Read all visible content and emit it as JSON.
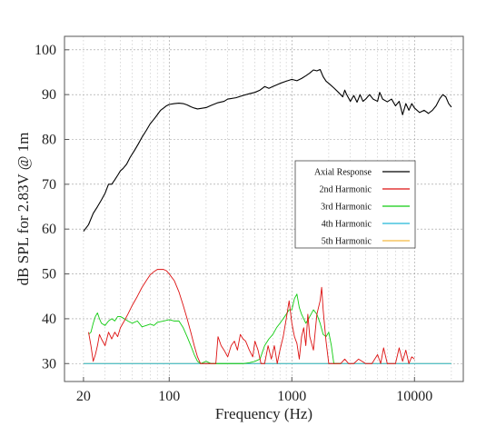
{
  "chart_data": {
    "type": "line",
    "title": "",
    "xlabel": "Frequency (Hz)",
    "ylabel": "dB SPL for 2.83V @ 1m",
    "xscale": "log",
    "xlim": [
      14,
      25000
    ],
    "ylim": [
      26,
      103
    ],
    "x_ticks": [
      20,
      100,
      1000,
      10000
    ],
    "x_tick_labels": [
      "20",
      "100",
      "1000",
      "10000"
    ],
    "y_ticks": [
      30,
      40,
      50,
      60,
      70,
      80,
      90,
      100
    ],
    "y_tick_labels": [
      "30",
      "40",
      "50",
      "60",
      "70",
      "80",
      "90",
      "100"
    ],
    "grid": true,
    "legend_position": "center-right",
    "series": [
      {
        "name": "Axial Response",
        "color": "#000000",
        "points": [
          [
            20,
            59.5
          ],
          [
            22,
            61
          ],
          [
            24,
            63.5
          ],
          [
            26,
            65
          ],
          [
            28,
            66.5
          ],
          [
            30,
            68
          ],
          [
            32,
            70
          ],
          [
            34,
            70
          ],
          [
            36,
            71
          ],
          [
            38,
            72
          ],
          [
            40,
            73
          ],
          [
            42,
            73.5
          ],
          [
            45,
            74.5
          ],
          [
            48,
            76
          ],
          [
            52,
            77.5
          ],
          [
            56,
            79
          ],
          [
            60,
            80.5
          ],
          [
            65,
            82
          ],
          [
            70,
            83.5
          ],
          [
            75,
            84.5
          ],
          [
            80,
            85.5
          ],
          [
            85,
            86.5
          ],
          [
            90,
            87
          ],
          [
            95,
            87.5
          ],
          [
            100,
            87.8
          ],
          [
            110,
            88
          ],
          [
            120,
            88.1
          ],
          [
            130,
            88
          ],
          [
            140,
            87.7
          ],
          [
            150,
            87.3
          ],
          [
            160,
            87
          ],
          [
            170,
            86.8
          ],
          [
            180,
            86.9
          ],
          [
            200,
            87.1
          ],
          [
            220,
            87.6
          ],
          [
            250,
            88.2
          ],
          [
            280,
            88.5
          ],
          [
            300,
            89
          ],
          [
            350,
            89.3
          ],
          [
            400,
            89.8
          ],
          [
            450,
            90.2
          ],
          [
            500,
            90.5
          ],
          [
            550,
            91
          ],
          [
            600,
            91.8
          ],
          [
            650,
            91.4
          ],
          [
            700,
            91.8
          ],
          [
            800,
            92.5
          ],
          [
            900,
            93
          ],
          [
            1000,
            93.4
          ],
          [
            1100,
            93.1
          ],
          [
            1200,
            93.6
          ],
          [
            1300,
            94.2
          ],
          [
            1400,
            94.8
          ],
          [
            1500,
            95.5
          ],
          [
            1600,
            95.3
          ],
          [
            1700,
            95.6
          ],
          [
            1800,
            94
          ],
          [
            1900,
            93
          ],
          [
            2000,
            92.5
          ],
          [
            2200,
            91.5
          ],
          [
            2400,
            90.5
          ],
          [
            2600,
            89.5
          ],
          [
            2700,
            91
          ],
          [
            2800,
            90
          ],
          [
            3000,
            88.5
          ],
          [
            3200,
            89.8
          ],
          [
            3400,
            88.3
          ],
          [
            3600,
            90
          ],
          [
            3800,
            88.5
          ],
          [
            4000,
            89
          ],
          [
            4300,
            90
          ],
          [
            4600,
            89
          ],
          [
            5000,
            88.5
          ],
          [
            5200,
            90.5
          ],
          [
            5500,
            89
          ],
          [
            6000,
            88.4
          ],
          [
            6500,
            89
          ],
          [
            7000,
            87.5
          ],
          [
            7500,
            88.5
          ],
          [
            8000,
            85.5
          ],
          [
            8500,
            88
          ],
          [
            9000,
            86.5
          ],
          [
            9500,
            88
          ],
          [
            10000,
            87
          ],
          [
            11000,
            86
          ],
          [
            12000,
            86.5
          ],
          [
            13000,
            85.8
          ],
          [
            14000,
            86.5
          ],
          [
            15000,
            87.5
          ],
          [
            16000,
            89
          ],
          [
            17000,
            90
          ],
          [
            18000,
            89.5
          ],
          [
            19000,
            88
          ],
          [
            20000,
            87.2
          ]
        ]
      },
      {
        "name": "2nd Harmonic",
        "color": "#dd1111",
        "points": [
          [
            22,
            37
          ],
          [
            23,
            34
          ],
          [
            24,
            30.5
          ],
          [
            25,
            32
          ],
          [
            26,
            34
          ],
          [
            27,
            36.5
          ],
          [
            28,
            35.5
          ],
          [
            30,
            34
          ],
          [
            32,
            37
          ],
          [
            34,
            35.5
          ],
          [
            36,
            37
          ],
          [
            38,
            36
          ],
          [
            40,
            38
          ],
          [
            43,
            39.5
          ],
          [
            46,
            41
          ],
          [
            50,
            43
          ],
          [
            55,
            45
          ],
          [
            60,
            47
          ],
          [
            65,
            48.5
          ],
          [
            70,
            49.8
          ],
          [
            75,
            50.5
          ],
          [
            80,
            51
          ],
          [
            85,
            51
          ],
          [
            90,
            51
          ],
          [
            95,
            50.7
          ],
          [
            100,
            50
          ],
          [
            110,
            48.5
          ],
          [
            120,
            46
          ],
          [
            130,
            43
          ],
          [
            140,
            40
          ],
          [
            150,
            37
          ],
          [
            160,
            34
          ],
          [
            170,
            31.5
          ],
          [
            180,
            30
          ],
          [
            210,
            30
          ],
          [
            240,
            30
          ],
          [
            250,
            36
          ],
          [
            265,
            34
          ],
          [
            280,
            33
          ],
          [
            300,
            31.5
          ],
          [
            320,
            34
          ],
          [
            340,
            35
          ],
          [
            360,
            33
          ],
          [
            380,
            36.5
          ],
          [
            400,
            35.5
          ],
          [
            420,
            35
          ],
          [
            450,
            33
          ],
          [
            480,
            31.5
          ],
          [
            500,
            35
          ],
          [
            530,
            33
          ],
          [
            560,
            30
          ],
          [
            600,
            30
          ],
          [
            640,
            34
          ],
          [
            680,
            31
          ],
          [
            720,
            34
          ],
          [
            760,
            30
          ],
          [
            800,
            33
          ],
          [
            850,
            36
          ],
          [
            900,
            40
          ],
          [
            950,
            44
          ],
          [
            1000,
            39
          ],
          [
            1050,
            36
          ],
          [
            1100,
            34.5
          ],
          [
            1150,
            31
          ],
          [
            1200,
            36
          ],
          [
            1250,
            38
          ],
          [
            1300,
            34
          ],
          [
            1350,
            41
          ],
          [
            1400,
            36
          ],
          [
            1500,
            33
          ],
          [
            1600,
            41
          ],
          [
            1700,
            44
          ],
          [
            1750,
            47
          ],
          [
            1800,
            42
          ],
          [
            1900,
            35
          ],
          [
            2000,
            30
          ],
          [
            2200,
            30
          ],
          [
            2500,
            30
          ],
          [
            2700,
            31
          ],
          [
            2900,
            30
          ],
          [
            3200,
            30
          ],
          [
            3500,
            31
          ],
          [
            4000,
            30
          ],
          [
            4500,
            30
          ],
          [
            5000,
            32
          ],
          [
            5300,
            30
          ],
          [
            5600,
            33.5
          ],
          [
            6000,
            30
          ],
          [
            7000,
            30
          ],
          [
            7500,
            33.5
          ],
          [
            8000,
            30.5
          ],
          [
            8500,
            33
          ],
          [
            9000,
            30
          ],
          [
            9500,
            31.5
          ],
          [
            10000,
            31
          ]
        ]
      },
      {
        "name": "3rd Harmonic",
        "color": "#11cc11",
        "points": [
          [
            22,
            36.5
          ],
          [
            23,
            37
          ],
          [
            24,
            39
          ],
          [
            25,
            40.5
          ],
          [
            26,
            41.3
          ],
          [
            27,
            40
          ],
          [
            28,
            39
          ],
          [
            30,
            38.5
          ],
          [
            32,
            39.5
          ],
          [
            34,
            40
          ],
          [
            36,
            39.5
          ],
          [
            38,
            40.5
          ],
          [
            40,
            40.5
          ],
          [
            43,
            40
          ],
          [
            46,
            39.5
          ],
          [
            50,
            39
          ],
          [
            55,
            39.5
          ],
          [
            60,
            38.2
          ],
          [
            65,
            38.5
          ],
          [
            70,
            38.8
          ],
          [
            75,
            38.5
          ],
          [
            80,
            39.2
          ],
          [
            90,
            39.5
          ],
          [
            100,
            39.8
          ],
          [
            110,
            39.5
          ],
          [
            120,
            39.5
          ],
          [
            130,
            38
          ],
          [
            140,
            36
          ],
          [
            150,
            34
          ],
          [
            160,
            32
          ],
          [
            170,
            30.5
          ],
          [
            180,
            30
          ],
          [
            200,
            30.5
          ],
          [
            220,
            30
          ],
          [
            250,
            30
          ],
          [
            300,
            30
          ],
          [
            350,
            30
          ],
          [
            400,
            30
          ],
          [
            450,
            30.2
          ],
          [
            500,
            30.5
          ],
          [
            550,
            31
          ],
          [
            600,
            34
          ],
          [
            650,
            35.5
          ],
          [
            700,
            36.5
          ],
          [
            750,
            38
          ],
          [
            800,
            39
          ],
          [
            850,
            40
          ],
          [
            900,
            41
          ],
          [
            950,
            42
          ],
          [
            1000,
            42
          ],
          [
            1050,
            44.5
          ],
          [
            1100,
            45.5
          ],
          [
            1150,
            42.5
          ],
          [
            1200,
            41
          ],
          [
            1300,
            39
          ],
          [
            1400,
            40.5
          ],
          [
            1500,
            42
          ],
          [
            1600,
            41
          ],
          [
            1700,
            39
          ],
          [
            1800,
            36.5
          ],
          [
            1900,
            36
          ],
          [
            2000,
            37
          ],
          [
            2100,
            34
          ],
          [
            2200,
            30
          ],
          [
            2500,
            30
          ]
        ]
      },
      {
        "name": "4th Harmonic",
        "color": "#22b8d8",
        "points": [
          [
            20,
            30
          ],
          [
            20000,
            30
          ]
        ]
      },
      {
        "name": "5th Harmonic",
        "color": "#f5b942",
        "points": [
          [
            20,
            30
          ],
          [
            20000,
            30
          ]
        ]
      }
    ]
  }
}
